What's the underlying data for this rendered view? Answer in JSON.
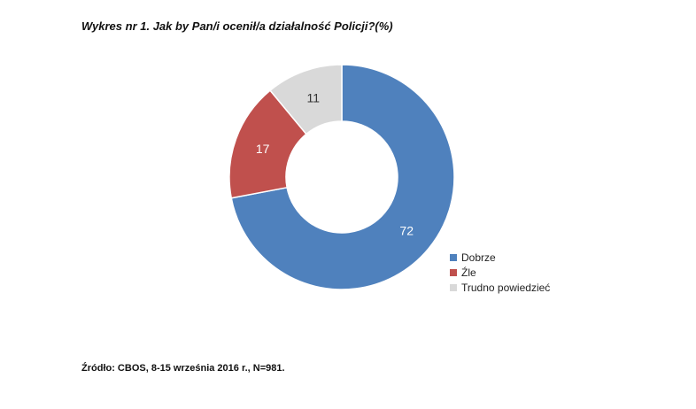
{
  "title": "Wykres nr 1.  Jak by Pan/i ocenił/a działalność Policji?(%)",
  "source": "Źródło: CBOS, 8-15 września 2016 r., N=981.",
  "chart_data": {
    "type": "pie",
    "donut": true,
    "title": "Wykres nr 1.  Jak by Pan/i ocenił/a działalność Policji?(%)",
    "unit": "%",
    "categories": [
      "Dobrze",
      "Źle",
      "Trudno powiedzieć"
    ],
    "values": [
      72,
      17,
      11
    ],
    "value_labels": [
      "72",
      "17",
      "11"
    ],
    "colors": [
      "#4f81bd",
      "#c0504d",
      "#d9d9d9"
    ],
    "label_colors": [
      "#ffffff",
      "#ffffff",
      "#333333"
    ],
    "legend_position": "right-bottom",
    "start_angle": "12 o'clock",
    "direction": "clockwise"
  }
}
